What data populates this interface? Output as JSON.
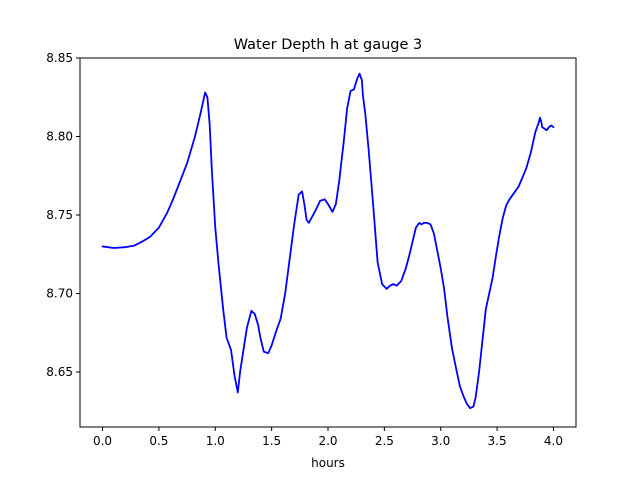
{
  "chart_data": {
    "type": "line",
    "title": "Water Depth h at gauge 3",
    "xlabel": "hours",
    "ylabel": "",
    "xlim": [
      -0.2,
      4.2
    ],
    "ylim": [
      8.615,
      8.85
    ],
    "xticks": [
      0.0,
      0.5,
      1.0,
      1.5,
      2.0,
      2.5,
      3.0,
      3.5,
      4.0
    ],
    "xtick_labels": [
      "0.0",
      "0.5",
      "1.0",
      "1.5",
      "2.0",
      "2.5",
      "3.0",
      "3.5",
      "4.0"
    ],
    "yticks": [
      8.65,
      8.7,
      8.75,
      8.8,
      8.85
    ],
    "ytick_labels": [
      "8.65",
      "8.70",
      "8.75",
      "8.80",
      "8.85"
    ],
    "grid": false,
    "series": [
      {
        "color": "#0000ff",
        "x": [
          0.0,
          0.1,
          0.2,
          0.28,
          0.35,
          0.42,
          0.5,
          0.57,
          0.62,
          0.68,
          0.75,
          0.82,
          0.87,
          0.91,
          0.93,
          0.95,
          0.97,
          1.0,
          1.03,
          1.07,
          1.1,
          1.14,
          1.17,
          1.2,
          1.22,
          1.25,
          1.28,
          1.32,
          1.35,
          1.38,
          1.4,
          1.43,
          1.47,
          1.5,
          1.54,
          1.58,
          1.62,
          1.66,
          1.7,
          1.74,
          1.77,
          1.79,
          1.81,
          1.83,
          1.86,
          1.89,
          1.93,
          1.97,
          2.0,
          2.04,
          2.07,
          2.1,
          2.14,
          2.17,
          2.2,
          2.23,
          2.26,
          2.28,
          2.3,
          2.31,
          2.33,
          2.36,
          2.4,
          2.44,
          2.48,
          2.52,
          2.55,
          2.58,
          2.61,
          2.65,
          2.69,
          2.72,
          2.75,
          2.78,
          2.81,
          2.83,
          2.85,
          2.88,
          2.91,
          2.94,
          2.97,
          3.0,
          3.03,
          3.06,
          3.1,
          3.14,
          3.17,
          3.2,
          3.23,
          3.26,
          3.29,
          3.31,
          3.34,
          3.37,
          3.4,
          3.43,
          3.46,
          3.49,
          3.52,
          3.55,
          3.58,
          3.61,
          3.65,
          3.69,
          3.72,
          3.76,
          3.8,
          3.84,
          3.87,
          3.88,
          3.89,
          3.9,
          3.92,
          3.94,
          3.96,
          3.98,
          4.0
        ],
        "y": [
          8.73,
          8.729,
          8.7295,
          8.7305,
          8.733,
          8.736,
          8.742,
          8.751,
          8.759,
          8.77,
          8.783,
          8.8,
          8.815,
          8.828,
          8.825,
          8.808,
          8.778,
          8.742,
          8.718,
          8.69,
          8.672,
          8.664,
          8.648,
          8.637,
          8.65,
          8.664,
          8.678,
          8.689,
          8.687,
          8.68,
          8.672,
          8.663,
          8.662,
          8.667,
          8.676,
          8.684,
          8.7,
          8.722,
          8.744,
          8.763,
          8.765,
          8.757,
          8.747,
          8.745,
          8.749,
          8.753,
          8.759,
          8.76,
          8.757,
          8.752,
          8.757,
          8.772,
          8.797,
          8.818,
          8.829,
          8.83,
          8.837,
          8.84,
          8.836,
          8.826,
          8.815,
          8.792,
          8.757,
          8.72,
          8.706,
          8.703,
          8.705,
          8.706,
          8.705,
          8.708,
          8.716,
          8.724,
          8.733,
          8.742,
          8.745,
          8.744,
          8.745,
          8.745,
          8.744,
          8.738,
          8.727,
          8.716,
          8.703,
          8.685,
          8.665,
          8.651,
          8.641,
          8.635,
          8.63,
          8.627,
          8.628,
          8.634,
          8.65,
          8.67,
          8.69,
          8.7,
          8.71,
          8.724,
          8.737,
          8.748,
          8.756,
          8.76,
          8.764,
          8.768,
          8.773,
          8.78,
          8.79,
          8.803,
          8.809,
          8.812,
          8.81,
          8.806,
          8.805,
          8.804,
          8.806,
          8.807,
          8.806
        ]
      }
    ]
  }
}
